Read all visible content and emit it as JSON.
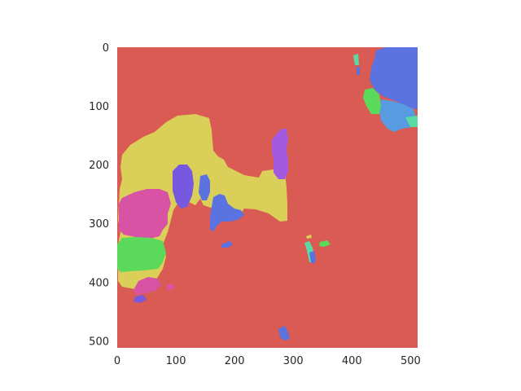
{
  "chart_data": {
    "type": "heatmap",
    "title": "",
    "xlabel": "",
    "ylabel": "",
    "xlim": [
      0,
      512
    ],
    "ylim": [
      512,
      0
    ],
    "x_ticks": [
      "0",
      "100",
      "200",
      "300",
      "400",
      "500"
    ],
    "y_ticks": [
      "0",
      "100",
      "200",
      "300",
      "400",
      "500"
    ],
    "grid": false,
    "legend": "none",
    "colors": {
      "background_class": "#da5b53",
      "yellow_class": "#dacf59",
      "pink_class": "#d953a5",
      "green_class": "#5ad95b",
      "blue_class": "#5b73e0",
      "light_blue_class": "#579be0",
      "purple_class": "#a359e0",
      "violet_class": "#7659e0",
      "teal_class": "#5bd9a3"
    }
  }
}
